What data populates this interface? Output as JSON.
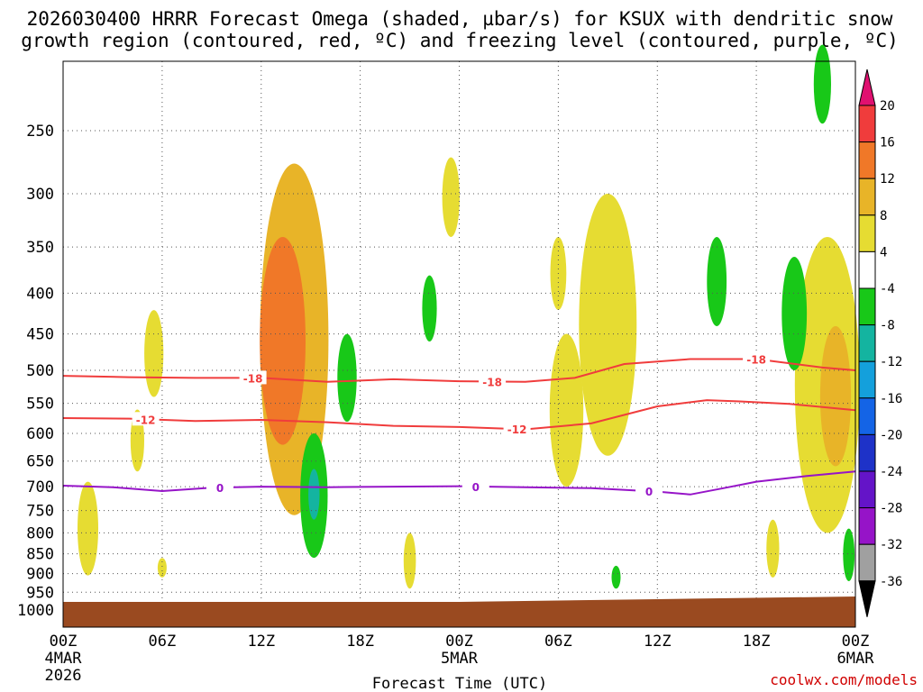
{
  "chart_data": {
    "type": "heatmap",
    "title_line1": "2026030400 HRRR Forecast Omega (shaded, µbar/s) for KSUX with dendritic snow",
    "title_line2": "growth region (contoured, red, ºC) and freezing level (contoured, purple, ºC)",
    "xlabel": "Forecast Time (UTC)",
    "ylabel": "",
    "x_ticks": [
      {
        "hour": 0,
        "label": "00Z",
        "sub1": "4MAR",
        "sub2": "2026"
      },
      {
        "hour": 6,
        "label": "06Z"
      },
      {
        "hour": 12,
        "label": "12Z"
      },
      {
        "hour": 18,
        "label": "18Z"
      },
      {
        "hour": 24,
        "label": "00Z",
        "sub1": "5MAR"
      },
      {
        "hour": 30,
        "label": "06Z"
      },
      {
        "hour": 36,
        "label": "12Z"
      },
      {
        "hour": 42,
        "label": "18Z"
      },
      {
        "hour": 48,
        "label": "00Z",
        "sub1": "6MAR"
      }
    ],
    "xlim": [
      0,
      48
    ],
    "y_levels": [
      250,
      300,
      350,
      400,
      450,
      500,
      550,
      600,
      650,
      700,
      750,
      800,
      850,
      900,
      950,
      1000
    ],
    "ylim_hpa": [
      200,
      1025
    ],
    "y_scale": "log-pressure",
    "grid": true,
    "colorbar": {
      "ticks": [
        "20",
        "16",
        "12",
        "8",
        "4",
        "-4",
        "-8",
        "-12",
        "-16",
        "-20",
        "-24",
        "-28",
        "-32",
        "-36"
      ],
      "colors": [
        "#e01070",
        "#f03c3c",
        "#f07828",
        "#e8b428",
        "#e6dc32",
        "#ffffff",
        "#18c818",
        "#14b4a0",
        "#14a0dc",
        "#1464e6",
        "#1e32c8",
        "#6414c8",
        "#9614c8",
        "#a0a0a0",
        "#000000"
      ]
    },
    "contours": [
      {
        "label": "-18",
        "color": "#f03c3c",
        "points": [
          [
            0,
            508
          ],
          [
            4,
            510
          ],
          [
            8,
            511
          ],
          [
            12,
            511
          ],
          [
            16,
            517
          ],
          [
            20,
            513
          ],
          [
            24,
            516
          ],
          [
            28,
            517
          ],
          [
            31,
            511
          ],
          [
            34,
            491
          ],
          [
            38,
            484
          ],
          [
            42,
            484
          ],
          [
            46,
            496
          ],
          [
            48,
            500
          ]
        ],
        "label_hours": [
          11.5,
          26,
          42
        ]
      },
      {
        "label": "-12",
        "color": "#f03c3c",
        "points": [
          [
            0,
            574
          ],
          [
            4,
            575
          ],
          [
            8,
            579
          ],
          [
            12,
            577
          ],
          [
            16,
            581
          ],
          [
            20,
            587
          ],
          [
            24,
            589
          ],
          [
            28,
            593
          ],
          [
            32,
            583
          ],
          [
            36,
            555
          ],
          [
            39,
            545
          ],
          [
            41,
            547
          ],
          [
            44,
            551
          ],
          [
            48,
            561
          ]
        ],
        "label_hours": [
          5,
          27.5
        ]
      },
      {
        "label": "0",
        "color": "#9614c8",
        "points": [
          [
            0,
            698
          ],
          [
            3,
            701
          ],
          [
            6,
            709
          ],
          [
            9,
            702
          ],
          [
            12,
            700
          ],
          [
            16,
            701
          ],
          [
            20,
            700
          ],
          [
            24,
            699
          ],
          [
            28,
            701
          ],
          [
            32,
            703
          ],
          [
            36,
            710
          ],
          [
            38,
            716
          ],
          [
            40,
            703
          ],
          [
            42,
            690
          ],
          [
            45,
            679
          ],
          [
            48,
            670
          ]
        ],
        "label_hours": [
          9.5,
          25,
          35.5
        ]
      }
    ],
    "omega_features": [
      {
        "sign": "up",
        "hour": 1.5,
        "p_top": 690,
        "p_bot": 905,
        "magnitude": 4
      },
      {
        "sign": "up",
        "hour": 4.5,
        "p_top": 560,
        "p_bot": 670,
        "magnitude": 4
      },
      {
        "sign": "up",
        "hour": 5.5,
        "p_top": 420,
        "p_bot": 540,
        "magnitude": 4
      },
      {
        "sign": "up",
        "hour": 6,
        "p_top": 860,
        "p_bot": 910,
        "magnitude": 4
      },
      {
        "sign": "up",
        "hour": 14,
        "p_top": 275,
        "p_bot": 760,
        "magnitude": 8
      },
      {
        "sign": "up",
        "hour": 13.3,
        "p_top": 340,
        "p_bot": 620,
        "magnitude": 12
      },
      {
        "sign": "down",
        "hour": 15.2,
        "p_top": 600,
        "p_bot": 860,
        "magnitude": -8
      },
      {
        "sign": "down",
        "hour": 15.2,
        "p_top": 665,
        "p_bot": 770,
        "magnitude": -12
      },
      {
        "sign": "down",
        "hour": 17.2,
        "p_top": 450,
        "p_bot": 580,
        "magnitude": -8
      },
      {
        "sign": "up",
        "hour": 21,
        "p_top": 800,
        "p_bot": 940,
        "magnitude": 4
      },
      {
        "sign": "up",
        "hour": 23.5,
        "p_top": 270,
        "p_bot": 340,
        "magnitude": 4
      },
      {
        "sign": "down",
        "hour": 22.2,
        "p_top": 380,
        "p_bot": 460,
        "magnitude": -8
      },
      {
        "sign": "up",
        "hour": 30,
        "p_top": 340,
        "p_bot": 420,
        "magnitude": 4
      },
      {
        "sign": "up",
        "hour": 30.5,
        "p_top": 450,
        "p_bot": 700,
        "magnitude": 4
      },
      {
        "sign": "up",
        "hour": 33,
        "p_top": 300,
        "p_bot": 640,
        "magnitude": 4
      },
      {
        "sign": "down",
        "hour": 33.5,
        "p_top": 880,
        "p_bot": 940,
        "magnitude": -8
      },
      {
        "sign": "down",
        "hour": 39.6,
        "p_top": 340,
        "p_bot": 440,
        "magnitude": -8
      },
      {
        "sign": "up",
        "hour": 43,
        "p_top": 770,
        "p_bot": 910,
        "magnitude": 4
      },
      {
        "sign": "down",
        "hour": 44.3,
        "p_top": 360,
        "p_bot": 500,
        "magnitude": -8
      },
      {
        "sign": "down",
        "hour": 46,
        "p_top": 195,
        "p_bot": 245,
        "magnitude": -8
      },
      {
        "sign": "up",
        "hour": 46.3,
        "p_top": 340,
        "p_bot": 800,
        "magnitude": 4
      },
      {
        "sign": "up",
        "hour": 46.8,
        "p_top": 440,
        "p_bot": 660,
        "magnitude": 8
      },
      {
        "sign": "down",
        "hour": 47.6,
        "p_top": 790,
        "p_bot": 920,
        "magnitude": -8
      }
    ],
    "terrain_color": "#9a4a20"
  },
  "credit": "coolwx.com/models"
}
